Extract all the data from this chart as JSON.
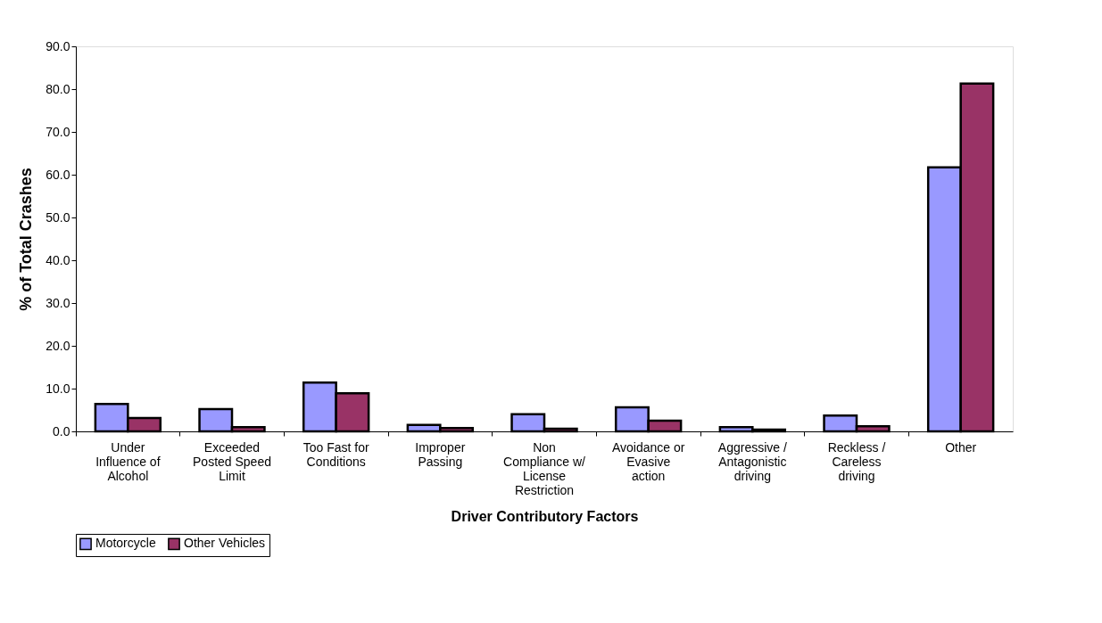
{
  "chart_data": {
    "type": "bar",
    "xlabel": "Driver Contributory Factors",
    "ylabel": "% of Total Crashes",
    "categories": [
      "Under Influence of Alcohol",
      "Exceeded Posted Speed Limit",
      "Too Fast for Conditions",
      "Improper Passing",
      "Non Compliance w/ License Restriction",
      "Avoidance or Evasive action",
      "Aggressive / Antagonistic driving",
      "Reckless / Careless driving",
      "Other"
    ],
    "series": [
      {
        "name": "Motorcycle",
        "color": "#9999ff",
        "values": [
          6.4,
          5.2,
          11.4,
          1.5,
          4.0,
          5.6,
          1.0,
          3.7,
          61.7
        ]
      },
      {
        "name": "Other Vehicles",
        "color": "#993366",
        "values": [
          3.1,
          1.0,
          8.9,
          0.8,
          0.6,
          2.5,
          0.4,
          1.2,
          81.3
        ]
      }
    ],
    "ylim": [
      0,
      90
    ],
    "yticks": [
      {
        "value": 0,
        "label": "0.0"
      },
      {
        "value": 10,
        "label": "10.0"
      },
      {
        "value": 20,
        "label": "20.0"
      },
      {
        "value": 30,
        "label": "30.0"
      },
      {
        "value": 40,
        "label": "40.0"
      },
      {
        "value": 50,
        "label": "50.0"
      },
      {
        "value": 60,
        "label": "60.0"
      },
      {
        "value": 70,
        "label": "70.0"
      },
      {
        "value": 80,
        "label": "80.0"
      },
      {
        "value": 90,
        "label": "90.0"
      }
    ],
    "grid": false,
    "legend": "bottom"
  }
}
